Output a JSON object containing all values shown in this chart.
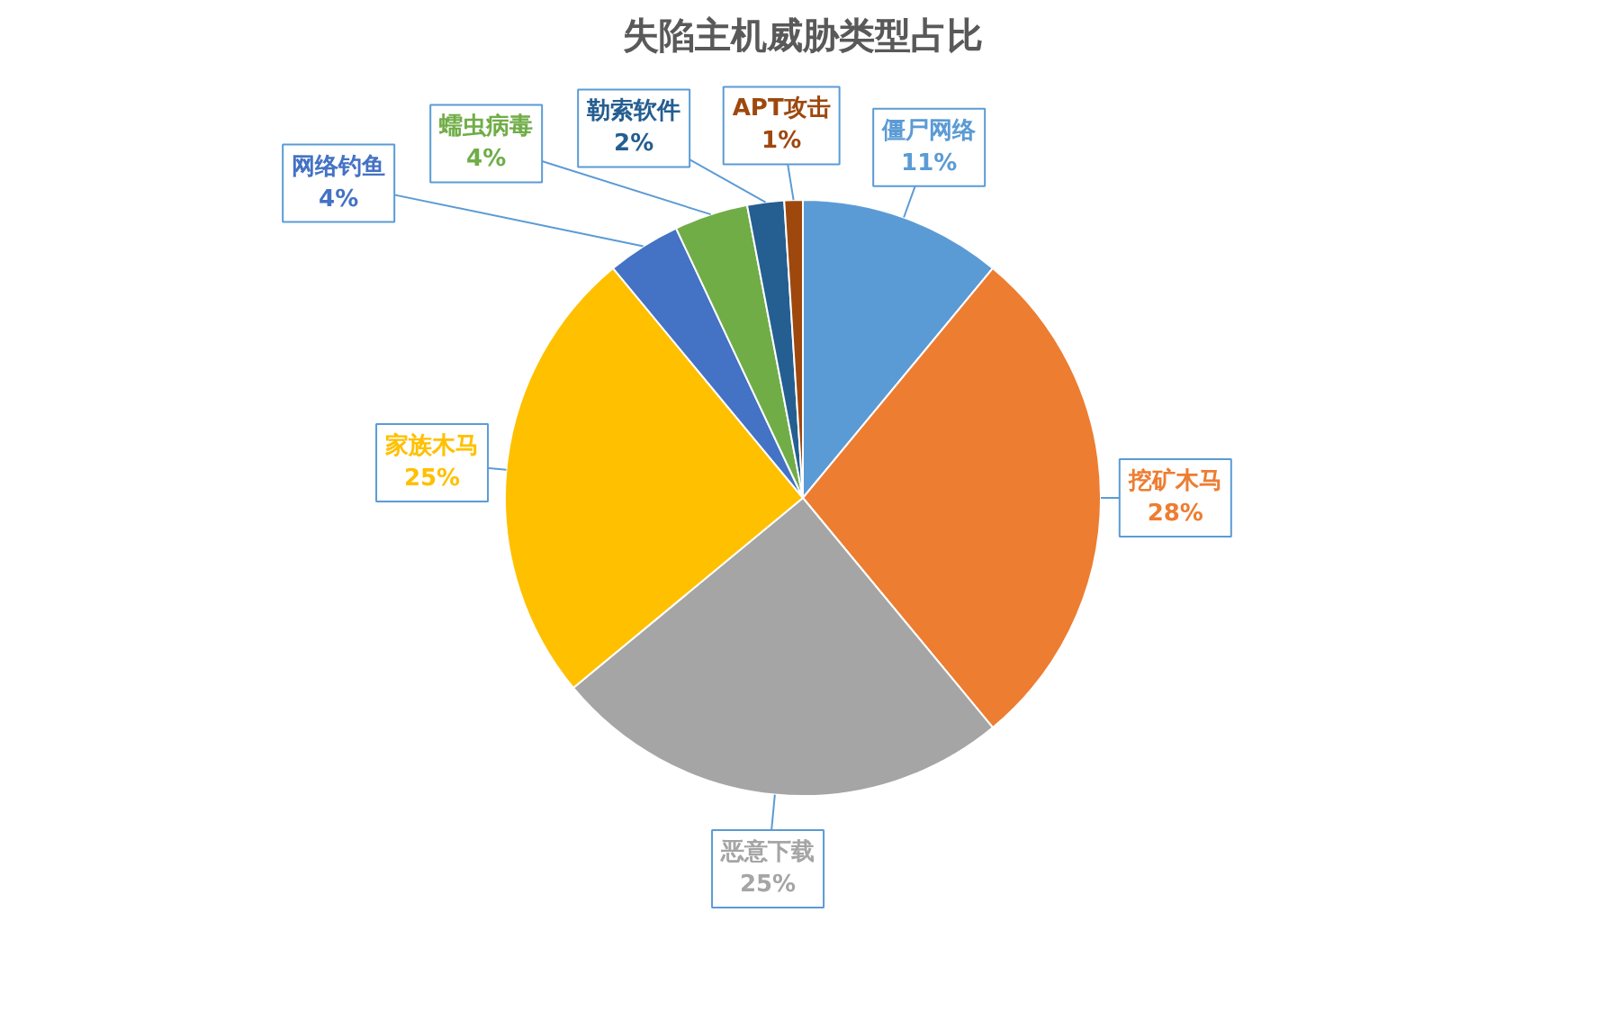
{
  "chart_data": {
    "type": "pie",
    "title": "失陷主机威胁类型占比",
    "categories": [
      "僵尸网络",
      "挖矿木马",
      "恶意下载",
      "家族木马",
      "网络钓鱼",
      "蠕虫病毒",
      "勒索软件",
      "APT攻击"
    ],
    "values": [
      11,
      28,
      25,
      25,
      4,
      4,
      2,
      1
    ],
    "value_labels": [
      "11%",
      "28%",
      "25%",
      "25%",
      "4%",
      "4%",
      "2%",
      "1%"
    ],
    "colors": [
      "#5b9bd5",
      "#ed7d31",
      "#a5a5a5",
      "#ffc000",
      "#4472c4",
      "#70ad47",
      "#255e91",
      "#9e480e"
    ]
  }
}
